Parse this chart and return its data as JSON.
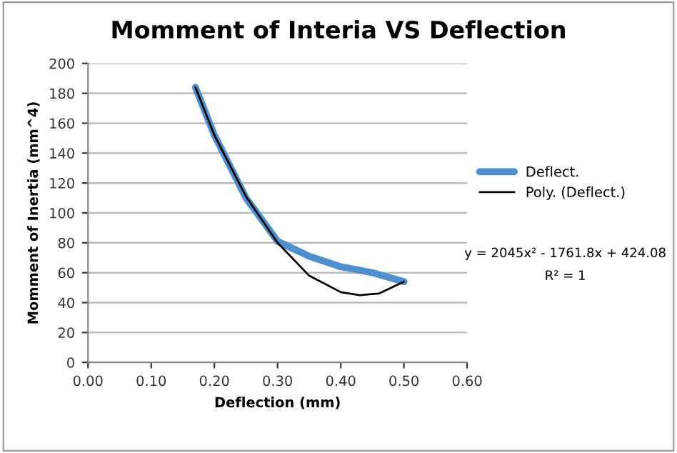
{
  "chart_data": {
    "type": "line",
    "title": "Momment of Interia VS Deflection",
    "xlabel": "Deflection (mm)",
    "ylabel": "Momment of Inertia (mm^4)",
    "series": [
      {
        "name": "Deflect.",
        "color": "#4f8fcf",
        "x": [
          0.17,
          0.2,
          0.25,
          0.3,
          0.35,
          0.4,
          0.45,
          0.5
        ],
        "values": [
          184,
          152,
          110,
          81,
          71,
          64,
          60,
          54
        ]
      },
      {
        "name": "Poly. (Deflect.)",
        "color": "#000000",
        "x": [
          0.17,
          0.2,
          0.25,
          0.3,
          0.35,
          0.4,
          0.43,
          0.46,
          0.5
        ],
        "values": [
          184,
          152,
          111,
          80,
          58,
          47,
          45,
          46,
          54
        ]
      }
    ],
    "annotations": [
      "y = 2045x² - 1761.8x + 424.08",
      "R² = 1"
    ],
    "xlim": [
      0,
      0.6
    ],
    "xticks": [
      {
        "value": 0,
        "label": "0.00"
      },
      {
        "value": 0.1,
        "label": "0.10"
      },
      {
        "value": 0.2,
        "label": "0.20"
      },
      {
        "value": 0.3,
        "label": "0.30"
      },
      {
        "value": 0.4,
        "label": "0.40"
      },
      {
        "value": 0.5,
        "label": "0.50"
      },
      {
        "value": 0.6,
        "label": "0.60"
      }
    ],
    "ylim": [
      0,
      200
    ],
    "yticks": [
      0,
      20,
      40,
      60,
      80,
      100,
      120,
      140,
      160,
      180,
      200
    ],
    "grid": "y",
    "legend": "right",
    "marker": "none"
  }
}
